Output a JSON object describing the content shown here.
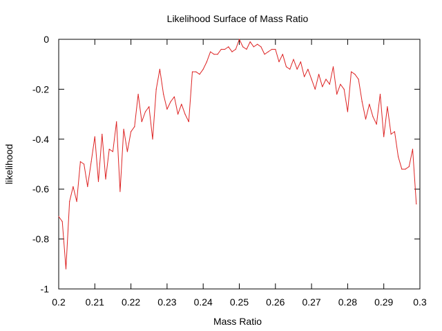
{
  "chart_data": {
    "type": "line",
    "title": "Likelihood Surface of Mass Ratio",
    "xlabel": "Mass Ratio",
    "ylabel": "likelihood",
    "xlim": [
      0.2,
      0.3
    ],
    "ylim": [
      -1,
      0
    ],
    "xticks": [
      0.2,
      0.21,
      0.22,
      0.23,
      0.24,
      0.25,
      0.26,
      0.27,
      0.28,
      0.29,
      0.3
    ],
    "xtick_labels": [
      "0.2",
      "0.21",
      "0.22",
      "0.23",
      "0.24",
      "0.25",
      "0.26",
      "0.27",
      "0.28",
      "0.29",
      "0.3"
    ],
    "yticks": [
      -1,
      -0.8,
      -0.6,
      -0.4,
      -0.2,
      0
    ],
    "ytick_labels": [
      "-1",
      "-0.8",
      "-0.6",
      "-0.4",
      "-0.2",
      "0"
    ],
    "grid": false,
    "series": [
      {
        "color": "#dd2222",
        "x": [
          0.2,
          0.201,
          0.202,
          0.203,
          0.204,
          0.205,
          0.206,
          0.207,
          0.208,
          0.209,
          0.21,
          0.211,
          0.212,
          0.213,
          0.214,
          0.215,
          0.216,
          0.217,
          0.218,
          0.219,
          0.22,
          0.221,
          0.222,
          0.223,
          0.224,
          0.225,
          0.226,
          0.227,
          0.228,
          0.229,
          0.23,
          0.231,
          0.232,
          0.233,
          0.234,
          0.235,
          0.236,
          0.237,
          0.238,
          0.239,
          0.24,
          0.241,
          0.242,
          0.243,
          0.244,
          0.245,
          0.246,
          0.247,
          0.248,
          0.249,
          0.25,
          0.251,
          0.252,
          0.253,
          0.254,
          0.255,
          0.256,
          0.257,
          0.258,
          0.259,
          0.26,
          0.261,
          0.262,
          0.263,
          0.264,
          0.265,
          0.266,
          0.267,
          0.268,
          0.269,
          0.27,
          0.271,
          0.272,
          0.273,
          0.274,
          0.275,
          0.276,
          0.277,
          0.278,
          0.279,
          0.28,
          0.281,
          0.282,
          0.283,
          0.284,
          0.285,
          0.286,
          0.287,
          0.288,
          0.289,
          0.29,
          0.291,
          0.292,
          0.293,
          0.294,
          0.295,
          0.296,
          0.297,
          0.298,
          0.299
        ],
        "y": [
          -0.71,
          -0.73,
          -0.92,
          -0.65,
          -0.59,
          -0.65,
          -0.49,
          -0.5,
          -0.59,
          -0.49,
          -0.39,
          -0.57,
          -0.38,
          -0.56,
          -0.44,
          -0.45,
          -0.33,
          -0.61,
          -0.36,
          -0.45,
          -0.37,
          -0.35,
          -0.22,
          -0.33,
          -0.29,
          -0.27,
          -0.4,
          -0.2,
          -0.12,
          -0.22,
          -0.28,
          -0.25,
          -0.23,
          -0.3,
          -0.26,
          -0.3,
          -0.33,
          -0.13,
          -0.13,
          -0.14,
          -0.12,
          -0.09,
          -0.05,
          -0.06,
          -0.06,
          -0.04,
          -0.04,
          -0.03,
          -0.05,
          -0.04,
          0.0,
          -0.03,
          -0.04,
          -0.01,
          -0.03,
          -0.02,
          -0.03,
          -0.06,
          -0.05,
          -0.04,
          -0.04,
          -0.09,
          -0.06,
          -0.11,
          -0.12,
          -0.08,
          -0.12,
          -0.09,
          -0.15,
          -0.12,
          -0.16,
          -0.2,
          -0.14,
          -0.19,
          -0.16,
          -0.18,
          -0.11,
          -0.22,
          -0.18,
          -0.2,
          -0.29,
          -0.13,
          -0.14,
          -0.16,
          -0.25,
          -0.32,
          -0.26,
          -0.31,
          -0.34,
          -0.22,
          -0.39,
          -0.27,
          -0.38,
          -0.37,
          -0.47,
          -0.52,
          -0.52,
          -0.51,
          -0.44,
          -0.66
        ]
      }
    ]
  }
}
